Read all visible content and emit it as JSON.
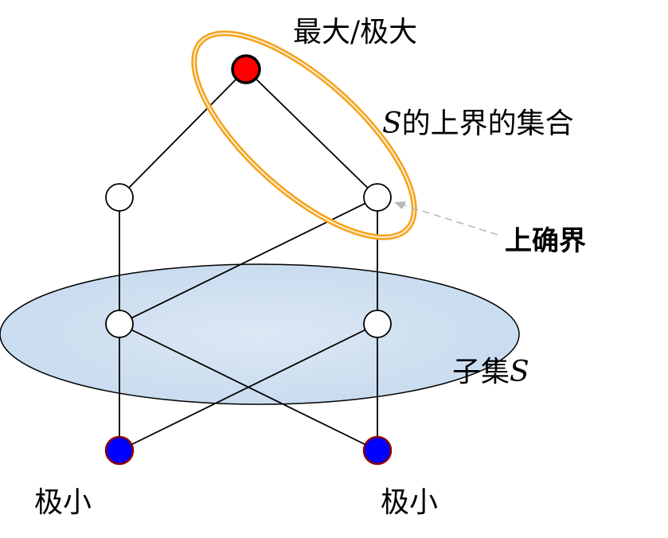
{
  "labels": {
    "top": "最大/极大",
    "upper_bounds_var": "S",
    "upper_bounds_rest": "的上界的集合",
    "supremum": "上确界",
    "subset_prefix": "子集",
    "subset_var": "S",
    "min_left": "极小",
    "min_right": "极小"
  },
  "colors": {
    "max_node": "#ff0000",
    "min_node": "#0000ff",
    "node_outline": "#000000",
    "min_node_outline": "#8b0000",
    "ellipse_orange": "#f5a623",
    "subset_fill": "#cfe0f0",
    "supremum_text": "#1a7a1a",
    "arrow": "#b8b8b8"
  }
}
